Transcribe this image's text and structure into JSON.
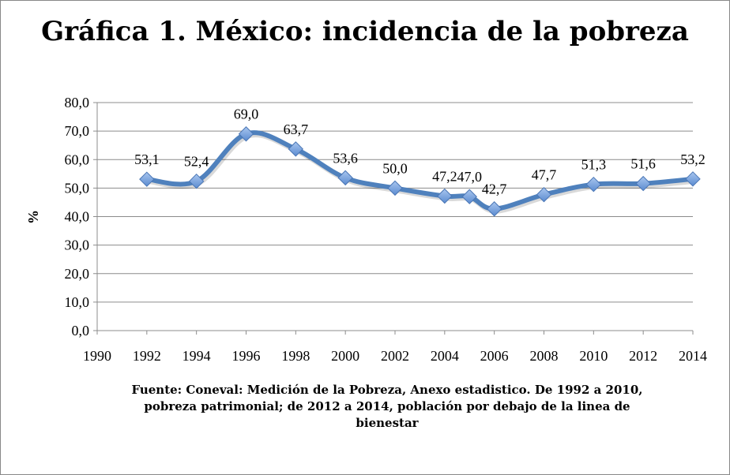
{
  "chart_data": {
    "type": "line",
    "title": "Gráfica 1. México: incidencia de la pobreza",
    "ylabel": "%",
    "xlabel": "",
    "x": [
      1992,
      1994,
      1996,
      1998,
      2000,
      2002,
      2004,
      2005,
      2006,
      2008,
      2010,
      2012,
      2014
    ],
    "values": [
      53.1,
      52.4,
      69.0,
      63.7,
      53.6,
      50.0,
      47.2,
      47.0,
      42.7,
      47.7,
      51.3,
      51.6,
      53.2
    ],
    "data_labels": [
      "53,1",
      "52,4",
      "69,0",
      "63,7",
      "53,6",
      "50,0",
      "47,2",
      "47,0",
      "42,7",
      "47,7",
      "51,3",
      "51,6",
      "53,2"
    ],
    "xlim": [
      1990,
      2014
    ],
    "ylim": [
      0,
      80
    ],
    "x_ticks": [
      "1990",
      "1992",
      "1994",
      "1996",
      "1998",
      "2000",
      "2002",
      "2004",
      "2006",
      "2008",
      "2010",
      "2012",
      "2014"
    ],
    "y_ticks": [
      "0,0",
      "10,0",
      "20,0",
      "30,0",
      "40,0",
      "50,0",
      "60,0",
      "70,0",
      "80,0"
    ],
    "grid": "horizontal",
    "line_color": "#4f81bd",
    "marker_color": "#7fa7e0",
    "marker": "diamond",
    "smooth": true,
    "source_note": "Fuente: Coneval: Medición de la Pobreza, Anexo estadistico. De 1992 a 2010, pobreza patrimonial; de 2012 a 2014, población por debajo de la linea de bienestar"
  }
}
